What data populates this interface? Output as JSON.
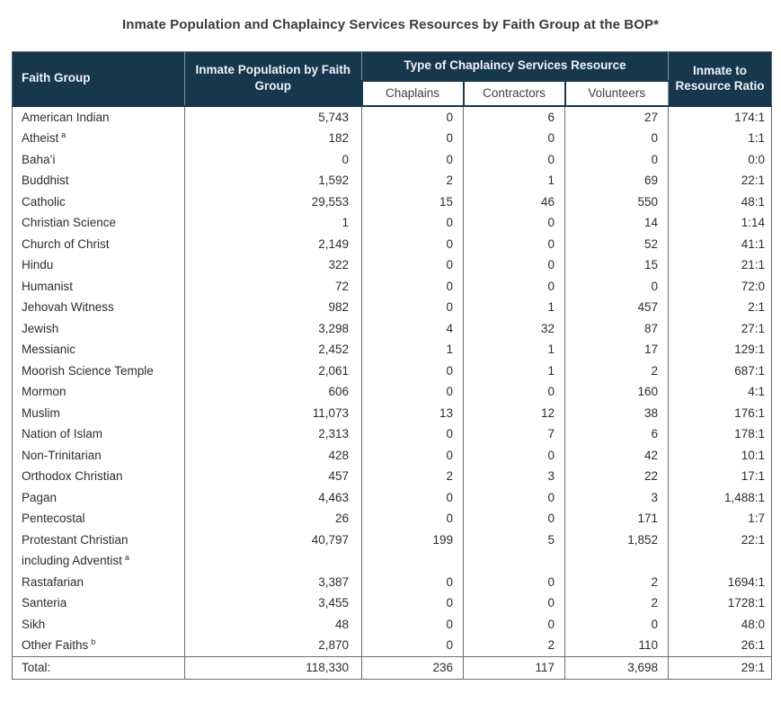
{
  "title": "Inmate Population and Chaplaincy Services Resources by Faith Group at the BOP*",
  "colors": {
    "header_bg": "#17374d",
    "header_text": "#eef3f7",
    "grid_line": "#6f6f6f",
    "body_text": "#2d2d2d"
  },
  "table": {
    "headers": {
      "faith_group": "Faith Group",
      "population": "Inmate Population by Faith Group",
      "resource_group": "Type of Chaplaincy Services Resource",
      "sub": [
        "Chaplains",
        "Contractors",
        "Volunteers"
      ],
      "ratio": "Inmate to Resource Ratio"
    },
    "rows": [
      {
        "faith": "American Indian",
        "population": "5,743",
        "chaplains": "0",
        "contractors": "6",
        "volunteers": "27",
        "ratio": "174:1"
      },
      {
        "faith": "Atheist",
        "sup": "a",
        "population": "182",
        "chaplains": "0",
        "contractors": "0",
        "volunteers": "0",
        "ratio": "1:1"
      },
      {
        "faith": "Baha’i",
        "population": "0",
        "chaplains": "0",
        "contractors": "0",
        "volunteers": "0",
        "ratio": "0:0"
      },
      {
        "faith": "Buddhist",
        "population": "1,592",
        "chaplains": "2",
        "contractors": "1",
        "volunteers": "69",
        "ratio": "22:1"
      },
      {
        "faith": "Catholic",
        "population": "29,553",
        "chaplains": "15",
        "contractors": "46",
        "volunteers": "550",
        "ratio": "48:1"
      },
      {
        "faith": "Christian Science",
        "population": "1",
        "chaplains": "0",
        "contractors": "0",
        "volunteers": "14",
        "ratio": "1:14"
      },
      {
        "faith": "Church of Christ",
        "population": "2,149",
        "chaplains": "0",
        "contractors": "0",
        "volunteers": "52",
        "ratio": "41:1"
      },
      {
        "faith": "Hindu",
        "population": "322",
        "chaplains": "0",
        "contractors": "0",
        "volunteers": "15",
        "ratio": "21:1"
      },
      {
        "faith": "Humanist",
        "population": "72",
        "chaplains": "0",
        "contractors": "0",
        "volunteers": "0",
        "ratio": "72:0"
      },
      {
        "faith": "Jehovah Witness",
        "population": "982",
        "chaplains": "0",
        "contractors": "1",
        "volunteers": "457",
        "ratio": "2:1"
      },
      {
        "faith": "Jewish",
        "population": "3,298",
        "chaplains": "4",
        "contractors": "32",
        "volunteers": "87",
        "ratio": "27:1"
      },
      {
        "faith": "Messianic",
        "population": "2,452",
        "chaplains": "1",
        "contractors": "1",
        "volunteers": "17",
        "ratio": "129:1"
      },
      {
        "faith": "Moorish Science Temple",
        "population": "2,061",
        "chaplains": "0",
        "contractors": "1",
        "volunteers": "2",
        "ratio": "687:1"
      },
      {
        "faith": "Mormon",
        "population": "606",
        "chaplains": "0",
        "contractors": "0",
        "volunteers": "160",
        "ratio": "4:1"
      },
      {
        "faith": "Muslim",
        "population": "11,073",
        "chaplains": "13",
        "contractors": "12",
        "volunteers": "38",
        "ratio": "176:1"
      },
      {
        "faith": "Nation of Islam",
        "population": "2,313",
        "chaplains": "0",
        "contractors": "7",
        "volunteers": "6",
        "ratio": "178:1"
      },
      {
        "faith": "Non-Trinitarian",
        "population": "428",
        "chaplains": "0",
        "contractors": "0",
        "volunteers": "42",
        "ratio": "10:1"
      },
      {
        "faith": "Orthodox Christian",
        "population": "457",
        "chaplains": "2",
        "contractors": "3",
        "volunteers": "22",
        "ratio": "17:1"
      },
      {
        "faith": "Pagan",
        "population": "4,463",
        "chaplains": "0",
        "contractors": "0",
        "volunteers": "3",
        "ratio": "1,488:1"
      },
      {
        "faith": "Pentecostal",
        "population": "26",
        "chaplains": "0",
        "contractors": "0",
        "volunteers": "171",
        "ratio": "1:7"
      },
      {
        "faith": "Protestant Christian including Adventist",
        "sup": "a",
        "population": "40,797",
        "chaplains": "199",
        "contractors": "5",
        "volunteers": "1,852",
        "ratio": "22:1"
      },
      {
        "faith": "Rastafarian",
        "population": "3,387",
        "chaplains": "0",
        "contractors": "0",
        "volunteers": "2",
        "ratio": "1694:1"
      },
      {
        "faith": "Santeria",
        "population": "3,455",
        "chaplains": "0",
        "contractors": "0",
        "volunteers": "2",
        "ratio": "1728:1"
      },
      {
        "faith": "Sikh",
        "population": "48",
        "chaplains": "0",
        "contractors": "0",
        "volunteers": "0",
        "ratio": "48:0"
      },
      {
        "faith": "Other Faiths",
        "sup": "b",
        "population": "2,870",
        "chaplains": "0",
        "contractors": "2",
        "volunteers": "110",
        "ratio": "26:1"
      }
    ],
    "total": {
      "label": "Total:",
      "population": "118,330",
      "chaplains": "236",
      "contractors": "117",
      "volunteers": "3,698",
      "ratio": "29:1"
    }
  }
}
